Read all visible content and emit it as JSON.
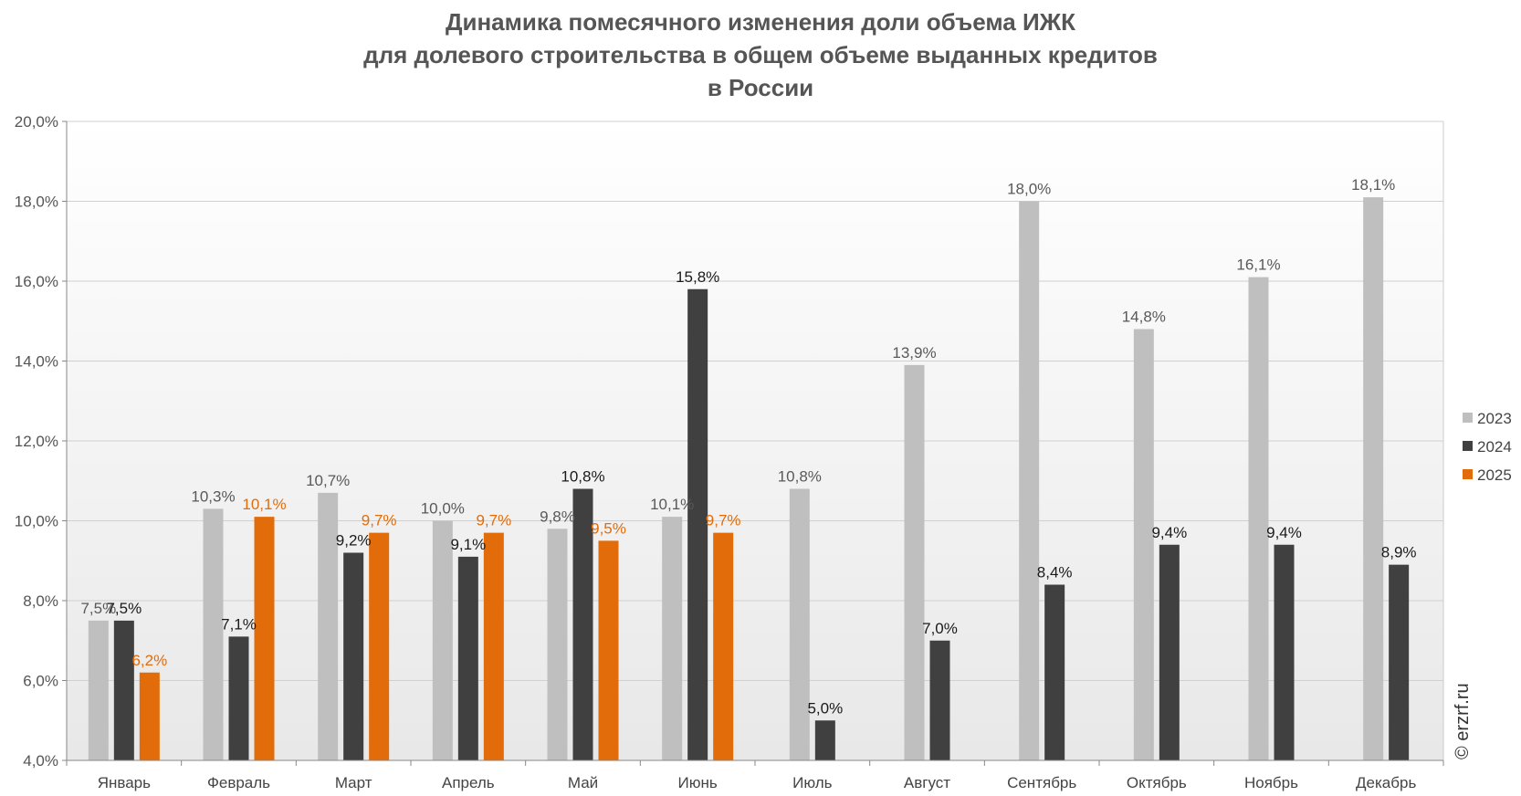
{
  "chart_data": {
    "type": "bar",
    "title_lines": [
      "Динамика помесячного изменения доли объема ИЖК",
      "для долевого строительства в общем объеме выданных кредитов",
      "в России"
    ],
    "categories": [
      "Январь",
      "Февраль",
      "Март",
      "Апрель",
      "Май",
      "Июнь",
      "Июль",
      "Август",
      "Сентябрь",
      "Октябрь",
      "Ноябрь",
      "Декабрь"
    ],
    "series": [
      {
        "name": "2023",
        "color": "#bfbfbf",
        "label_color": "#595959",
        "values": [
          7.5,
          10.3,
          10.7,
          10.0,
          9.8,
          10.1,
          10.8,
          13.9,
          18.0,
          14.8,
          16.1,
          18.1
        ],
        "labels": [
          "7,5%",
          "10,3%",
          "10,7%",
          "10,0%",
          "9,8%",
          "10,1%",
          "10,8%",
          "13,9%",
          "18,0%",
          "14,8%",
          "16,1%",
          "18,1%"
        ]
      },
      {
        "name": "2024",
        "color": "#404040",
        "label_color": "#1a1a1a",
        "values": [
          7.5,
          7.1,
          9.2,
          9.1,
          10.8,
          15.8,
          5.0,
          7.0,
          8.4,
          9.4,
          9.4,
          8.9
        ],
        "labels": [
          "7,5%",
          "7,1%",
          "9,2%",
          "9,1%",
          "10,8%",
          "15,8%",
          "5,0%",
          "7,0%",
          "8,4%",
          "9,4%",
          "9,4%",
          "8,9%"
        ]
      },
      {
        "name": "2025",
        "color": "#e36c0a",
        "label_color": "#e36c0a",
        "values": [
          6.2,
          10.1,
          9.7,
          9.7,
          9.5,
          9.7,
          null,
          null,
          null,
          null,
          null,
          null
        ],
        "labels": [
          "6,2%",
          "10,1%",
          "9,7%",
          "9,7%",
          "9,5%",
          "9,7%",
          "",
          "",
          "",
          "",
          "",
          ""
        ]
      }
    ],
    "ylim": [
      4.0,
      20.0
    ],
    "y_ticks": [
      4.0,
      6.0,
      8.0,
      10.0,
      12.0,
      14.0,
      16.0,
      18.0,
      20.0
    ],
    "y_tick_labels": [
      "4,0%",
      "6,0%",
      "8,0%",
      "10,0%",
      "12,0%",
      "14,0%",
      "16,0%",
      "18,0%",
      "20,0%"
    ],
    "grid": "horizontal",
    "legend_position": "right"
  },
  "credit": "© erzrf.ru"
}
